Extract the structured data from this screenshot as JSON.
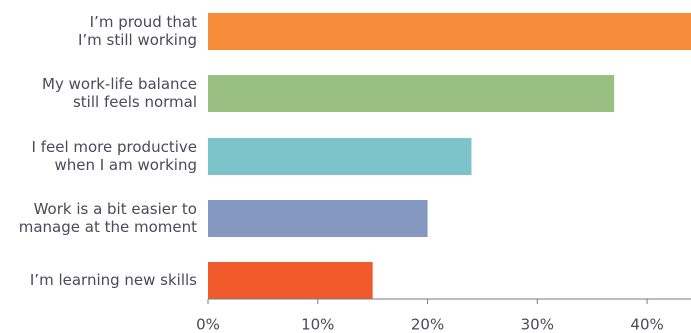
{
  "chart_data": {
    "type": "bar",
    "orientation": "horizontal",
    "categories": [
      [
        "I’m proud that",
        "I’m still working"
      ],
      [
        "My work-life balance",
        "still feels normal"
      ],
      [
        "I feel more productive",
        "when I am working"
      ],
      [
        "Work is a bit easier to",
        "manage at the moment"
      ],
      [
        "I’m learning new skills"
      ]
    ],
    "values": [
      44,
      37,
      24,
      20,
      15
    ],
    "colors": [
      "#f68b3a",
      "#9abf82",
      "#7cc4c9",
      "#8498c1",
      "#f15a2b"
    ],
    "xlim": [
      0,
      44
    ],
    "xticks": [
      0,
      10,
      20,
      30,
      40
    ],
    "xtick_labels": [
      "0%",
      "10%",
      "20%",
      "30%",
      "40%"
    ],
    "grid": false,
    "legend": "none",
    "title": "",
    "xlabel": "",
    "ylabel": ""
  }
}
